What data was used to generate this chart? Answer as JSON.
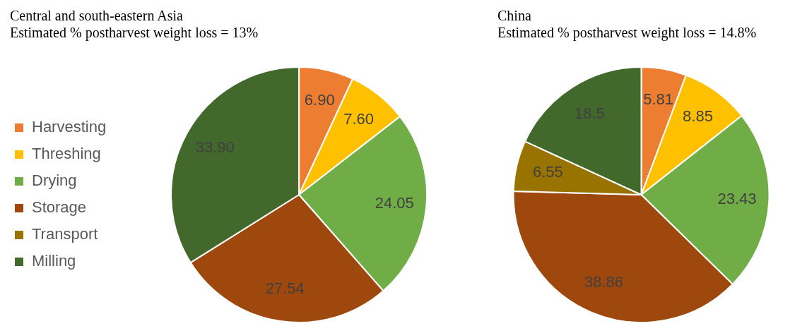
{
  "chart_data": [
    {
      "type": "pie",
      "title": "Central and south-eastern Asia",
      "subtitle": "Estimated % postharvest weight loss = 13%",
      "categories": [
        "Harvesting",
        "Threshing",
        "Drying",
        "Storage",
        "Transport",
        "Milling"
      ],
      "values": [
        6.9,
        7.6,
        24.05,
        27.54,
        null,
        33.9
      ],
      "value_labels": [
        "6.90",
        "7.60",
        "24.05",
        "27.54",
        null,
        "33.90"
      ],
      "colors": [
        "#ed7d31",
        "#ffc000",
        "#70ad47",
        "#9e480e",
        "#997300",
        "#43682b"
      ],
      "legend": "left"
    },
    {
      "type": "pie",
      "title": "China",
      "subtitle": "Estimated % postharvest weight loss = 14.8%",
      "categories": [
        null,
        null,
        null,
        null,
        null,
        null
      ],
      "values": [
        5.81,
        8.85,
        23.43,
        38.86,
        6.55,
        18.5
      ],
      "value_labels": [
        "5.81",
        "8.85",
        "23.43",
        "38.86",
        "6.55",
        "18.5"
      ],
      "colors": [
        "#ed7d31",
        "#ffc000",
        "#70ad47",
        "#9e480e",
        "#997300",
        "#43682b"
      ],
      "legend": false
    }
  ]
}
